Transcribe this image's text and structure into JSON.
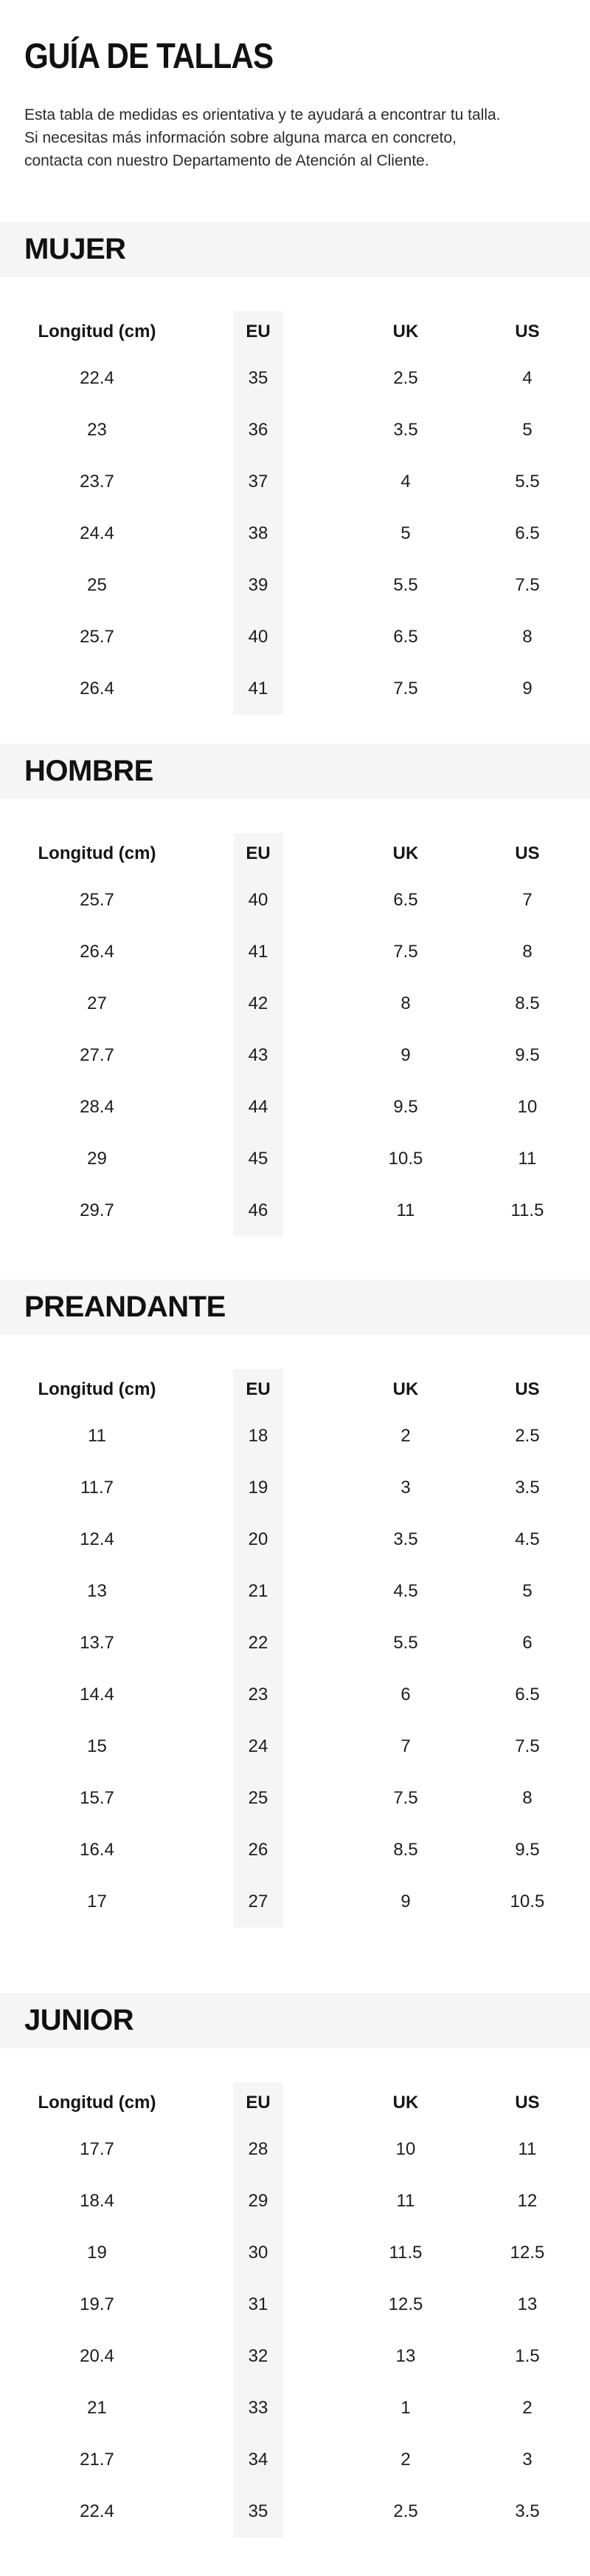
{
  "page": {
    "title": "GUÍA DE TALLAS",
    "intro_lines": [
      "Esta tabla de medidas es orientativa y te ayudará a encontrar tu talla.",
      "Si necesitas más información sobre alguna marca en concreto,",
      "contacta con nuestro Departamento de Atención al Cliente."
    ]
  },
  "theme": {
    "band_background": "#f5f5f5",
    "eu_strip_background": "#f5f5f5",
    "text_color": "#1d1d1d",
    "heading_color": "#111111"
  },
  "columns": [
    "Longitud (cm)",
    "EU",
    "UK",
    "US"
  ],
  "sections": [
    {
      "label": "MUJER",
      "rows": [
        [
          "22.4",
          "35",
          "2.5",
          "4"
        ],
        [
          "23",
          "36",
          "3.5",
          "5"
        ],
        [
          "23.7",
          "37",
          "4",
          "5.5"
        ],
        [
          "24.4",
          "38",
          "5",
          "6.5"
        ],
        [
          "25",
          "39",
          "5.5",
          "7.5"
        ],
        [
          "25.7",
          "40",
          "6.5",
          "8"
        ],
        [
          "26.4",
          "41",
          "7.5",
          "9"
        ]
      ]
    },
    {
      "label": "HOMBRE",
      "rows": [
        [
          "25.7",
          "40",
          "6.5",
          "7"
        ],
        [
          "26.4",
          "41",
          "7.5",
          "8"
        ],
        [
          "27",
          "42",
          "8",
          "8.5"
        ],
        [
          "27.7",
          "43",
          "9",
          "9.5"
        ],
        [
          "28.4",
          "44",
          "9.5",
          "10"
        ],
        [
          "29",
          "45",
          "10.5",
          "11"
        ],
        [
          "29.7",
          "46",
          "11",
          "11.5"
        ]
      ]
    },
    {
      "label": "PREANDANTE",
      "rows": [
        [
          "11",
          "18",
          "2",
          "2.5"
        ],
        [
          "11.7",
          "19",
          "3",
          "3.5"
        ],
        [
          "12.4",
          "20",
          "3.5",
          "4.5"
        ],
        [
          "13",
          "21",
          "4.5",
          "5"
        ],
        [
          "13.7",
          "22",
          "5.5",
          "6"
        ],
        [
          "14.4",
          "23",
          "6",
          "6.5"
        ],
        [
          "15",
          "24",
          "7",
          "7.5"
        ],
        [
          "15.7",
          "25",
          "7.5",
          "8"
        ],
        [
          "16.4",
          "26",
          "8.5",
          "9.5"
        ],
        [
          "17",
          "27",
          "9",
          "10.5"
        ]
      ]
    },
    {
      "label": "JUNIOR",
      "rows": [
        [
          "17.7",
          "28",
          "10",
          "11"
        ],
        [
          "18.4",
          "29",
          "11",
          "12"
        ],
        [
          "19",
          "30",
          "11.5",
          "12.5"
        ],
        [
          "19.7",
          "31",
          "12.5",
          "13"
        ],
        [
          "20.4",
          "32",
          "13",
          "1.5"
        ],
        [
          "21",
          "33",
          "1",
          "2"
        ],
        [
          "21.7",
          "34",
          "2",
          "3"
        ],
        [
          "22.4",
          "35",
          "2.5",
          "3.5"
        ]
      ]
    }
  ]
}
